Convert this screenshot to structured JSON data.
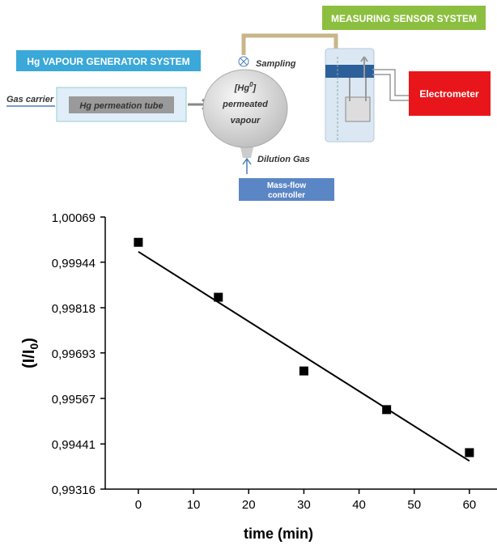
{
  "diagram": {
    "generator_title": "Hg VAPOUR GENERATOR SYSTEM",
    "sensor_title": "MEASURING SENSOR SYSTEM",
    "gas_carrier": "Gas carrier",
    "tube": "Hg permeation tube",
    "vapour": {
      "open": "[Hg",
      "sup": "0",
      "close": "]",
      "line2": "permeated",
      "line3": "vapour"
    },
    "sampling": "Sampling",
    "dilution": "Dilution Gas",
    "mfc": [
      "Mass-flow",
      "controller"
    ],
    "electrometer": "Electrometer"
  },
  "chart_data": {
    "type": "scatter",
    "x_label": "time (min)",
    "y_label": {
      "main": "(I/I",
      "sub": "0",
      "close": ")"
    },
    "series": [
      {
        "x": [
          0,
          14.5,
          30,
          45,
          60
        ],
        "values": [
          0.99999,
          0.99847,
          0.99643,
          0.99536,
          0.99417
        ],
        "color": "#000000"
      }
    ],
    "fit": {
      "x": [
        0,
        60
      ],
      "values": [
        0.99973,
        0.99394
      ],
      "color": "#000000"
    },
    "xlim": [
      -6,
      65
    ],
    "ylim": [
      0.99316,
      1.00069
    ],
    "xticks": [
      0,
      10,
      20,
      30,
      40,
      50,
      60
    ],
    "yticks": [
      {
        "value": 0.99316,
        "label": "0,99316"
      },
      {
        "value": 0.99441,
        "label": "0,99441"
      },
      {
        "value": 0.99567,
        "label": "0,99567"
      },
      {
        "value": 0.99693,
        "label": "0,99693"
      },
      {
        "value": 0.99818,
        "label": "0,99818"
      },
      {
        "value": 0.99944,
        "label": "0,99944"
      },
      {
        "value": 1.00069,
        "label": "1,00069"
      }
    ]
  }
}
